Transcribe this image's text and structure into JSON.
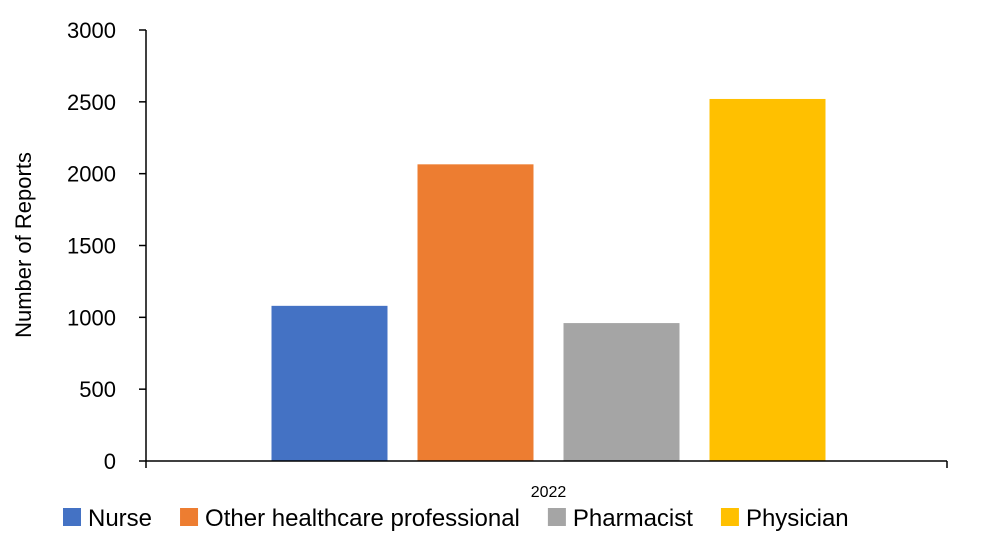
{
  "chart_data": {
    "type": "bar",
    "title": "",
    "xlabel": "",
    "ylabel": "Number of Reports",
    "categories": [
      "2022"
    ],
    "ylim": [
      0,
      3000
    ],
    "yticks": [
      0,
      500,
      1000,
      1500,
      2000,
      2500,
      3000
    ],
    "grid": false,
    "legend_position": "bottom",
    "series": [
      {
        "name": "Nurse",
        "values": [
          1080
        ],
        "color": "#4472C4"
      },
      {
        "name": "Other healthcare professional",
        "values": [
          2065
        ],
        "color": "#ED7D31"
      },
      {
        "name": "Pharmacist",
        "values": [
          960
        ],
        "color": "#A5A5A5"
      },
      {
        "name": "Physician",
        "values": [
          2520
        ],
        "color": "#FFC000"
      }
    ]
  }
}
